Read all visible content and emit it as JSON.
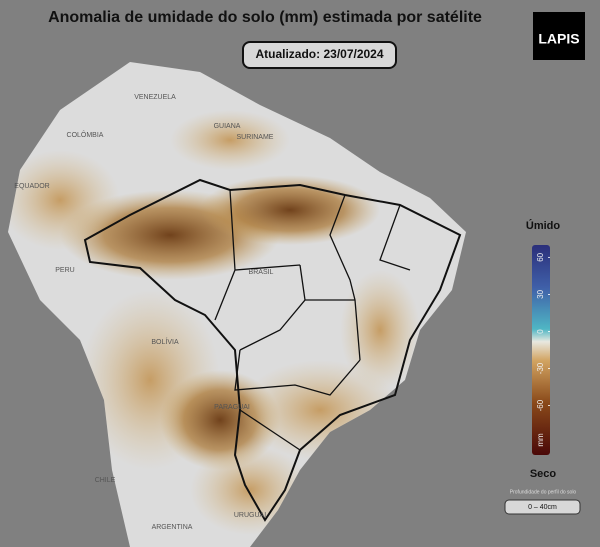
{
  "header": {
    "title": "Anomalia de umidade do solo (mm) estimada por satélite",
    "updated": "Atualizado: 23/07/2024",
    "logo": "LAPIS"
  },
  "map": {
    "labels": [
      "VENEZUELA",
      "COLÔMBIA",
      "GUIANA",
      "SURINAME",
      "EQUADOR",
      "PERU",
      "BRASIL",
      "BOLÍVIA",
      "PARAGUAI",
      "CHILE",
      "ARGENTINA",
      "URUGUAI"
    ]
  },
  "legend": {
    "wet": "Úmido",
    "dry": "Seco",
    "lim": [
      -100,
      70
    ],
    "ticks": [
      60,
      30,
      0,
      -30,
      -60
    ],
    "unit": "mm",
    "depth_title": "Profundidade do perfil do solo",
    "depth": "0 – 40cm"
  }
}
